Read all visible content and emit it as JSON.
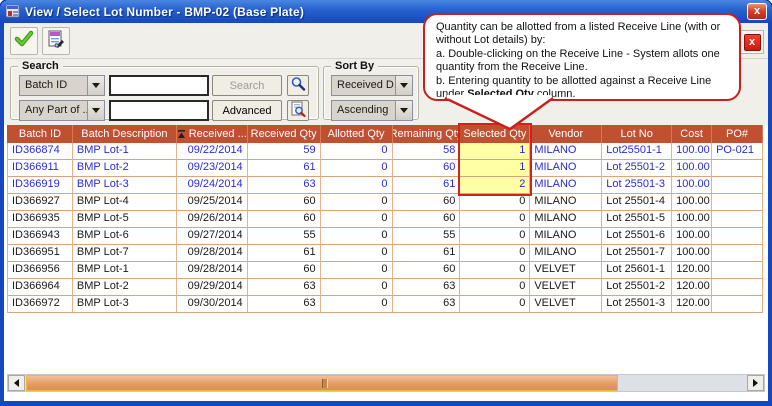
{
  "window": {
    "title": "View / Select Lot Number - BMP-02 (Base Plate)",
    "close_label": "x"
  },
  "toolbar": {
    "accept_icon": "green-check",
    "report_icon": "report-preview",
    "close_icon": "red-x",
    "close_glyph": "x"
  },
  "search": {
    "label": "Search",
    "row1_field": "Batch ID",
    "row1_value": "",
    "row2_field": "Any Part of ...",
    "row2_value": "",
    "search_button": "Search",
    "advanced_button": "Advanced"
  },
  "sort": {
    "label": "Sort By",
    "field": "Received D...",
    "order": "Ascending"
  },
  "callout": {
    "line1": "Quantity can be allotted from a listed Receive Line (with or without Lot details) by:",
    "line2": "a. Double-clicking on the Receive Line - System allots one quantity from the Receive Line.",
    "line3_prefix": "b. Entering quantity to be allotted against a Receive Line under ",
    "line3_bold": "Selected Qty",
    "line3_suffix": " column."
  },
  "table": {
    "columns": [
      {
        "label": "Batch ID"
      },
      {
        "label": "Batch Description"
      },
      {
        "label": "Received ...",
        "sorted": true
      },
      {
        "label": "Received Qty"
      },
      {
        "label": "Allotted Qty"
      },
      {
        "label": "Remaining Qty"
      },
      {
        "label": "Selected Qty"
      },
      {
        "label": "Vendor"
      },
      {
        "label": "Lot No"
      },
      {
        "label": "Cost"
      },
      {
        "label": "PO#"
      }
    ],
    "rows": [
      {
        "cells": [
          "ID366874",
          "BMP Lot-1",
          "09/22/2014",
          "59",
          "0",
          "58",
          "1",
          "MILANO",
          "Lot25501-1",
          "100.00",
          "PO-021"
        ],
        "highlight": true
      },
      {
        "cells": [
          "ID366911",
          "BMP Lot-2",
          "09/23/2014",
          "61",
          "0",
          "60",
          "1",
          "MILANO",
          "Lot 25501-2",
          "100.00",
          ""
        ],
        "highlight": true
      },
      {
        "cells": [
          "ID366919",
          "BMP Lot-3",
          "09/24/2014",
          "63",
          "0",
          "61",
          "2",
          "MILANO",
          "Lot 25501-3",
          "100.00",
          ""
        ],
        "highlight": true
      },
      {
        "cells": [
          "ID366927",
          "BMP Lot-4",
          "09/25/2014",
          "60",
          "0",
          "60",
          "0",
          "MILANO",
          "Lot 25501-4",
          "100.00",
          ""
        ]
      },
      {
        "cells": [
          "ID366935",
          "BMP Lot-5",
          "09/26/2014",
          "60",
          "0",
          "60",
          "0",
          "MILANO",
          "Lot 25501-5",
          "100.00",
          ""
        ]
      },
      {
        "cells": [
          "ID366943",
          "BMP Lot-6",
          "09/27/2014",
          "55",
          "0",
          "55",
          "0",
          "MILANO",
          "Lot 25501-6",
          "100.00",
          ""
        ]
      },
      {
        "cells": [
          "ID366951",
          "BMP Lot-7",
          "09/28/2014",
          "61",
          "0",
          "61",
          "0",
          "MILANO",
          "Lot 25501-7",
          "100.00",
          ""
        ]
      },
      {
        "cells": [
          "ID366956",
          "BMP Lot-1",
          "09/28/2014",
          "60",
          "0",
          "60",
          "0",
          "VELVET",
          "Lot 25601-1",
          "120.00",
          ""
        ]
      },
      {
        "cells": [
          "ID366964",
          "BMP Lot-2",
          "09/29/2014",
          "63",
          "0",
          "63",
          "0",
          "VELVET",
          "Lot 25501-2",
          "120.00",
          ""
        ]
      },
      {
        "cells": [
          "ID366972",
          "BMP Lot-3",
          "09/30/2014",
          "63",
          "0",
          "63",
          "0",
          "VELVET",
          "Lot 25501-3",
          "120.00",
          ""
        ]
      }
    ]
  },
  "colors": {
    "header_bg": "#C05030",
    "highlight_cell": "#FFFFA6",
    "link_text": "#2B2BD5",
    "callout_border": "#C8201C",
    "selection_box": "#D42020",
    "scroll_thumb": "#E8A878",
    "title_blue": "#1747BE"
  }
}
